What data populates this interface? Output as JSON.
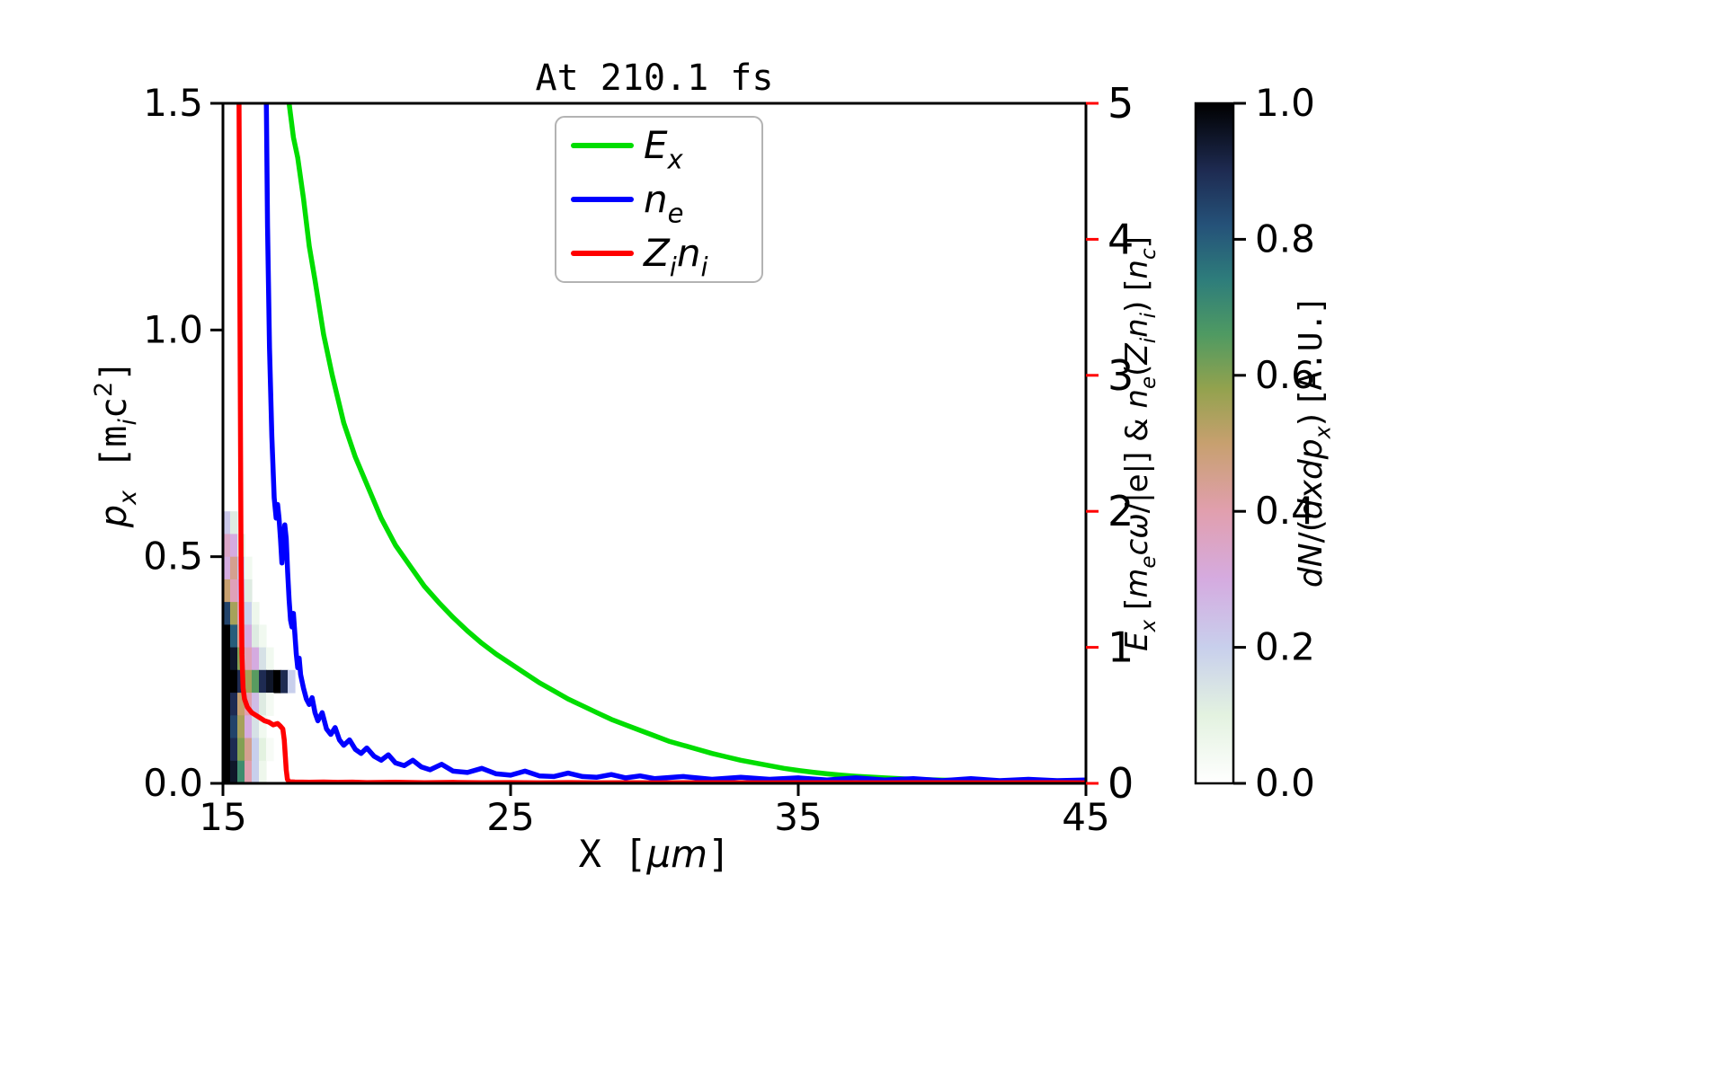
{
  "figure": {
    "background": "#ffffff"
  },
  "chart_data": {
    "type": "line+heatmap",
    "title": "At 210.1 fs",
    "x_axis": {
      "range": [
        15,
        45
      ],
      "ticks": [
        15,
        25,
        35,
        45
      ],
      "label_segments": [
        {
          "t": "X [",
          "mono": true
        },
        {
          "t": "μm",
          "italic": true
        },
        {
          "t": "]",
          "mono": true
        }
      ]
    },
    "y_left": {
      "range": [
        0,
        1.5
      ],
      "ticks": [
        0.0,
        0.5,
        1.0,
        1.5
      ],
      "label_segments": [
        {
          "t": "p",
          "italic": true
        },
        {
          "t": "x",
          "sub": true,
          "italic": true
        },
        {
          "t": " [",
          "mono": true
        },
        {
          "t": "m",
          "mono": true
        },
        {
          "t": "i",
          "sub": true,
          "italic": true
        },
        {
          "t": "c",
          "mono": true
        },
        {
          "t": "2",
          "sup": true
        },
        {
          "t": "]",
          "mono": true
        }
      ]
    },
    "y_right": {
      "range": [
        0,
        5
      ],
      "ticks": [
        0,
        1,
        2,
        3,
        4,
        5
      ],
      "color": "#ff0000",
      "label_segments": [
        {
          "t": "E",
          "italic": true
        },
        {
          "t": "x",
          "sub": true,
          "italic": true
        },
        {
          "t": " ["
        },
        {
          "t": "m",
          "italic": true
        },
        {
          "t": "e",
          "sub": true,
          "italic": true
        },
        {
          "t": "cω",
          "italic": true
        },
        {
          "t": "/|e|] & "
        },
        {
          "t": "n",
          "italic": true
        },
        {
          "t": "e",
          "sub": true,
          "italic": true
        },
        {
          "t": "("
        },
        {
          "t": "Z",
          "italic": true
        },
        {
          "t": "i",
          "sub": true,
          "italic": true
        },
        {
          "t": "n",
          "italic": true
        },
        {
          "t": "i",
          "sub": true,
          "italic": true
        },
        {
          "t": ") ["
        },
        {
          "t": "n",
          "italic": true
        },
        {
          "t": "c",
          "sub": true,
          "italic": true
        },
        {
          "t": "]"
        }
      ]
    },
    "legend": {
      "position": "upper center"
    },
    "series": [
      {
        "name": "Ex",
        "color": "#00dd00",
        "axis": "right",
        "legend_segments": [
          {
            "t": "E",
            "italic": true
          },
          {
            "t": "x",
            "sub": true,
            "italic": true
          }
        ],
        "x": [
          15.0,
          17.0,
          17.3,
          17.45,
          17.6,
          17.8,
          18.0,
          18.2,
          18.5,
          18.8,
          19.2,
          19.6,
          20.0,
          20.5,
          21.0,
          21.5,
          22.0,
          22.5,
          23.0,
          23.5,
          24.0,
          24.5,
          25.0,
          25.5,
          26.0,
          26.5,
          27.0,
          27.5,
          28.0,
          28.5,
          29.0,
          29.5,
          30.0,
          30.5,
          31.0,
          31.5,
          32.0,
          32.5,
          33.0,
          33.5,
          34.0,
          34.5,
          35.0,
          35.5,
          36.0,
          36.5,
          37.0,
          38.0,
          39.0,
          40.0,
          41.0,
          42.0,
          43.0,
          44.0,
          45.0
        ],
        "y": [
          6.0,
          5.7,
          5.0,
          4.75,
          4.6,
          4.3,
          3.95,
          3.7,
          3.3,
          3.0,
          2.65,
          2.4,
          2.2,
          1.95,
          1.75,
          1.6,
          1.45,
          1.33,
          1.22,
          1.12,
          1.03,
          0.95,
          0.88,
          0.81,
          0.74,
          0.68,
          0.62,
          0.57,
          0.52,
          0.47,
          0.43,
          0.39,
          0.35,
          0.31,
          0.28,
          0.25,
          0.22,
          0.195,
          0.17,
          0.15,
          0.13,
          0.11,
          0.095,
          0.082,
          0.07,
          0.06,
          0.052,
          0.04,
          0.03,
          0.024,
          0.019,
          0.015,
          0.012,
          0.01,
          0.009
        ]
      },
      {
        "name": "ne",
        "color": "#0000ff",
        "axis": "right",
        "legend_segments": [
          {
            "t": "n",
            "italic": true
          },
          {
            "t": "e",
            "sub": true,
            "italic": true
          }
        ],
        "x": [
          15.0,
          16.45,
          16.5,
          16.55,
          16.62,
          16.7,
          16.78,
          16.85,
          16.9,
          16.95,
          17.0,
          17.05,
          17.1,
          17.15,
          17.2,
          17.25,
          17.3,
          17.35,
          17.4,
          17.45,
          17.5,
          17.55,
          17.6,
          17.65,
          17.7,
          17.8,
          17.9,
          18.0,
          18.1,
          18.2,
          18.3,
          18.45,
          18.6,
          18.75,
          18.9,
          19.05,
          19.2,
          19.4,
          19.6,
          19.8,
          20.0,
          20.25,
          20.5,
          20.75,
          21.0,
          21.3,
          21.6,
          21.9,
          22.2,
          22.6,
          23.0,
          23.5,
          24.0,
          24.5,
          25.0,
          25.5,
          26.0,
          26.5,
          27.0,
          27.5,
          28.0,
          28.5,
          29.0,
          29.5,
          30.0,
          31.0,
          32.0,
          33.0,
          34.0,
          35.0,
          36.0,
          37.0,
          38.0,
          39.0,
          40.0,
          41.0,
          42.0,
          43.0,
          44.0,
          45.0
        ],
        "y": [
          6.5,
          6.5,
          5.2,
          4.1,
          3.2,
          2.55,
          2.1,
          1.95,
          2.05,
          1.95,
          1.8,
          1.62,
          1.75,
          1.9,
          1.8,
          1.55,
          1.35,
          1.2,
          1.15,
          1.25,
          1.1,
          0.95,
          0.85,
          0.92,
          0.8,
          0.7,
          0.62,
          0.58,
          0.63,
          0.52,
          0.46,
          0.52,
          0.4,
          0.36,
          0.41,
          0.32,
          0.28,
          0.32,
          0.25,
          0.22,
          0.26,
          0.2,
          0.17,
          0.21,
          0.15,
          0.13,
          0.17,
          0.12,
          0.1,
          0.14,
          0.09,
          0.08,
          0.11,
          0.07,
          0.06,
          0.09,
          0.055,
          0.05,
          0.075,
          0.05,
          0.045,
          0.065,
          0.04,
          0.055,
          0.035,
          0.05,
          0.03,
          0.045,
          0.03,
          0.04,
          0.025,
          0.04,
          0.025,
          0.035,
          0.02,
          0.035,
          0.02,
          0.03,
          0.02,
          0.025
        ]
      },
      {
        "name": "Zi-ni",
        "color": "#ff0000",
        "axis": "right",
        "legend_segments": [
          {
            "t": "Z",
            "italic": true
          },
          {
            "t": "i",
            "sub": true,
            "italic": true
          },
          {
            "t": "n",
            "italic": true
          },
          {
            "t": "i",
            "sub": true,
            "italic": true
          }
        ],
        "x": [
          15.0,
          15.5,
          15.56,
          15.6,
          15.63,
          15.66,
          15.7,
          15.75,
          15.85,
          16.0,
          16.15,
          16.3,
          16.45,
          16.6,
          16.75,
          16.9,
          17.0,
          17.08,
          17.13,
          17.17,
          17.2,
          17.24,
          17.3,
          17.5,
          18.0,
          18.5,
          19.0,
          19.5,
          20.0,
          21.0,
          22.0,
          23.0,
          24.0,
          25.0,
          26.0,
          27.0,
          28.0,
          29.0,
          30.0,
          32.0,
          34.0,
          36.0,
          38.0,
          40.0,
          42.0,
          44.0,
          45.0
        ],
        "y": [
          6.5,
          6.5,
          5.0,
          3.0,
          1.6,
          0.95,
          0.7,
          0.62,
          0.56,
          0.52,
          0.5,
          0.48,
          0.46,
          0.45,
          0.43,
          0.44,
          0.42,
          0.4,
          0.32,
          0.2,
          0.1,
          0.03,
          0.012,
          0.01,
          0.008,
          0.01,
          0.007,
          0.009,
          0.006,
          0.008,
          0.005,
          0.007,
          0.005,
          0.006,
          0.004,
          0.006,
          0.004,
          0.005,
          0.004,
          0.005,
          0.004,
          0.005,
          0.004,
          0.005,
          0.004,
          0.005,
          0.004
        ]
      }
    ],
    "heatmap": {
      "x0": 15.0,
      "dx": 0.25,
      "p0": 0.0,
      "dp": 0.05,
      "rows_top_to_bottom": [
        [
          0.22,
          0.12,
          0,
          0,
          0,
          0,
          0,
          0,
          0,
          0
        ],
        [
          0.35,
          0.3,
          0.1,
          0,
          0,
          0,
          0,
          0,
          0,
          0
        ],
        [
          0.3,
          0.45,
          0.22,
          0.05,
          0,
          0,
          0,
          0,
          0,
          0
        ],
        [
          0.5,
          0.38,
          0.3,
          0.12,
          0,
          0,
          0,
          0,
          0,
          0
        ],
        [
          0.85,
          0.55,
          0.4,
          0.2,
          0.06,
          0,
          0,
          0,
          0,
          0
        ],
        [
          1.0,
          0.8,
          0.45,
          0.3,
          0.12,
          0.05,
          0,
          0,
          0,
          0
        ],
        [
          1.0,
          0.95,
          0.6,
          0.38,
          0.3,
          0.15,
          0.05,
          0,
          0,
          0
        ],
        [
          1.0,
          1.0,
          0.9,
          0.55,
          0.65,
          0.9,
          0.95,
          1.0,
          0.9,
          0.2
        ],
        [
          1.0,
          0.9,
          0.5,
          0.4,
          0.25,
          0.12,
          0.04,
          0,
          0,
          0
        ],
        [
          1.0,
          0.85,
          0.55,
          0.3,
          0.15,
          0.05,
          0,
          0,
          0,
          0
        ],
        [
          1.0,
          0.9,
          0.6,
          0.45,
          0.2,
          0.1,
          0.03,
          0,
          0,
          0
        ],
        [
          1.0,
          0.95,
          0.7,
          0.4,
          0.2,
          0.06,
          0,
          0,
          0,
          0
        ]
      ],
      "colormap_stops": [
        [
          0.0,
          "#ffffff"
        ],
        [
          0.1,
          "#e3f2e0"
        ],
        [
          0.2,
          "#c8cfec"
        ],
        [
          0.3,
          "#d5abe0"
        ],
        [
          0.4,
          "#e19fae"
        ],
        [
          0.5,
          "#c7a06f"
        ],
        [
          0.58,
          "#93a24e"
        ],
        [
          0.66,
          "#4f9a62"
        ],
        [
          0.74,
          "#2e7d7b"
        ],
        [
          0.82,
          "#255279"
        ],
        [
          0.9,
          "#1e2b52"
        ],
        [
          1.0,
          "#000000"
        ]
      ],
      "colorbar": {
        "range": [
          0,
          1
        ],
        "ticks": [
          0.0,
          0.2,
          0.4,
          0.6,
          0.8,
          1.0
        ],
        "label_segments": [
          {
            "t": "dN",
            "italic": true
          },
          {
            "t": "/("
          },
          {
            "t": "dxdp",
            "italic": true
          },
          {
            "t": "x",
            "sub": true,
            "italic": true
          },
          {
            "t": ") ["
          },
          {
            "t": "A.U.",
            "mono": true
          },
          {
            "t": "]"
          }
        ]
      }
    }
  }
}
